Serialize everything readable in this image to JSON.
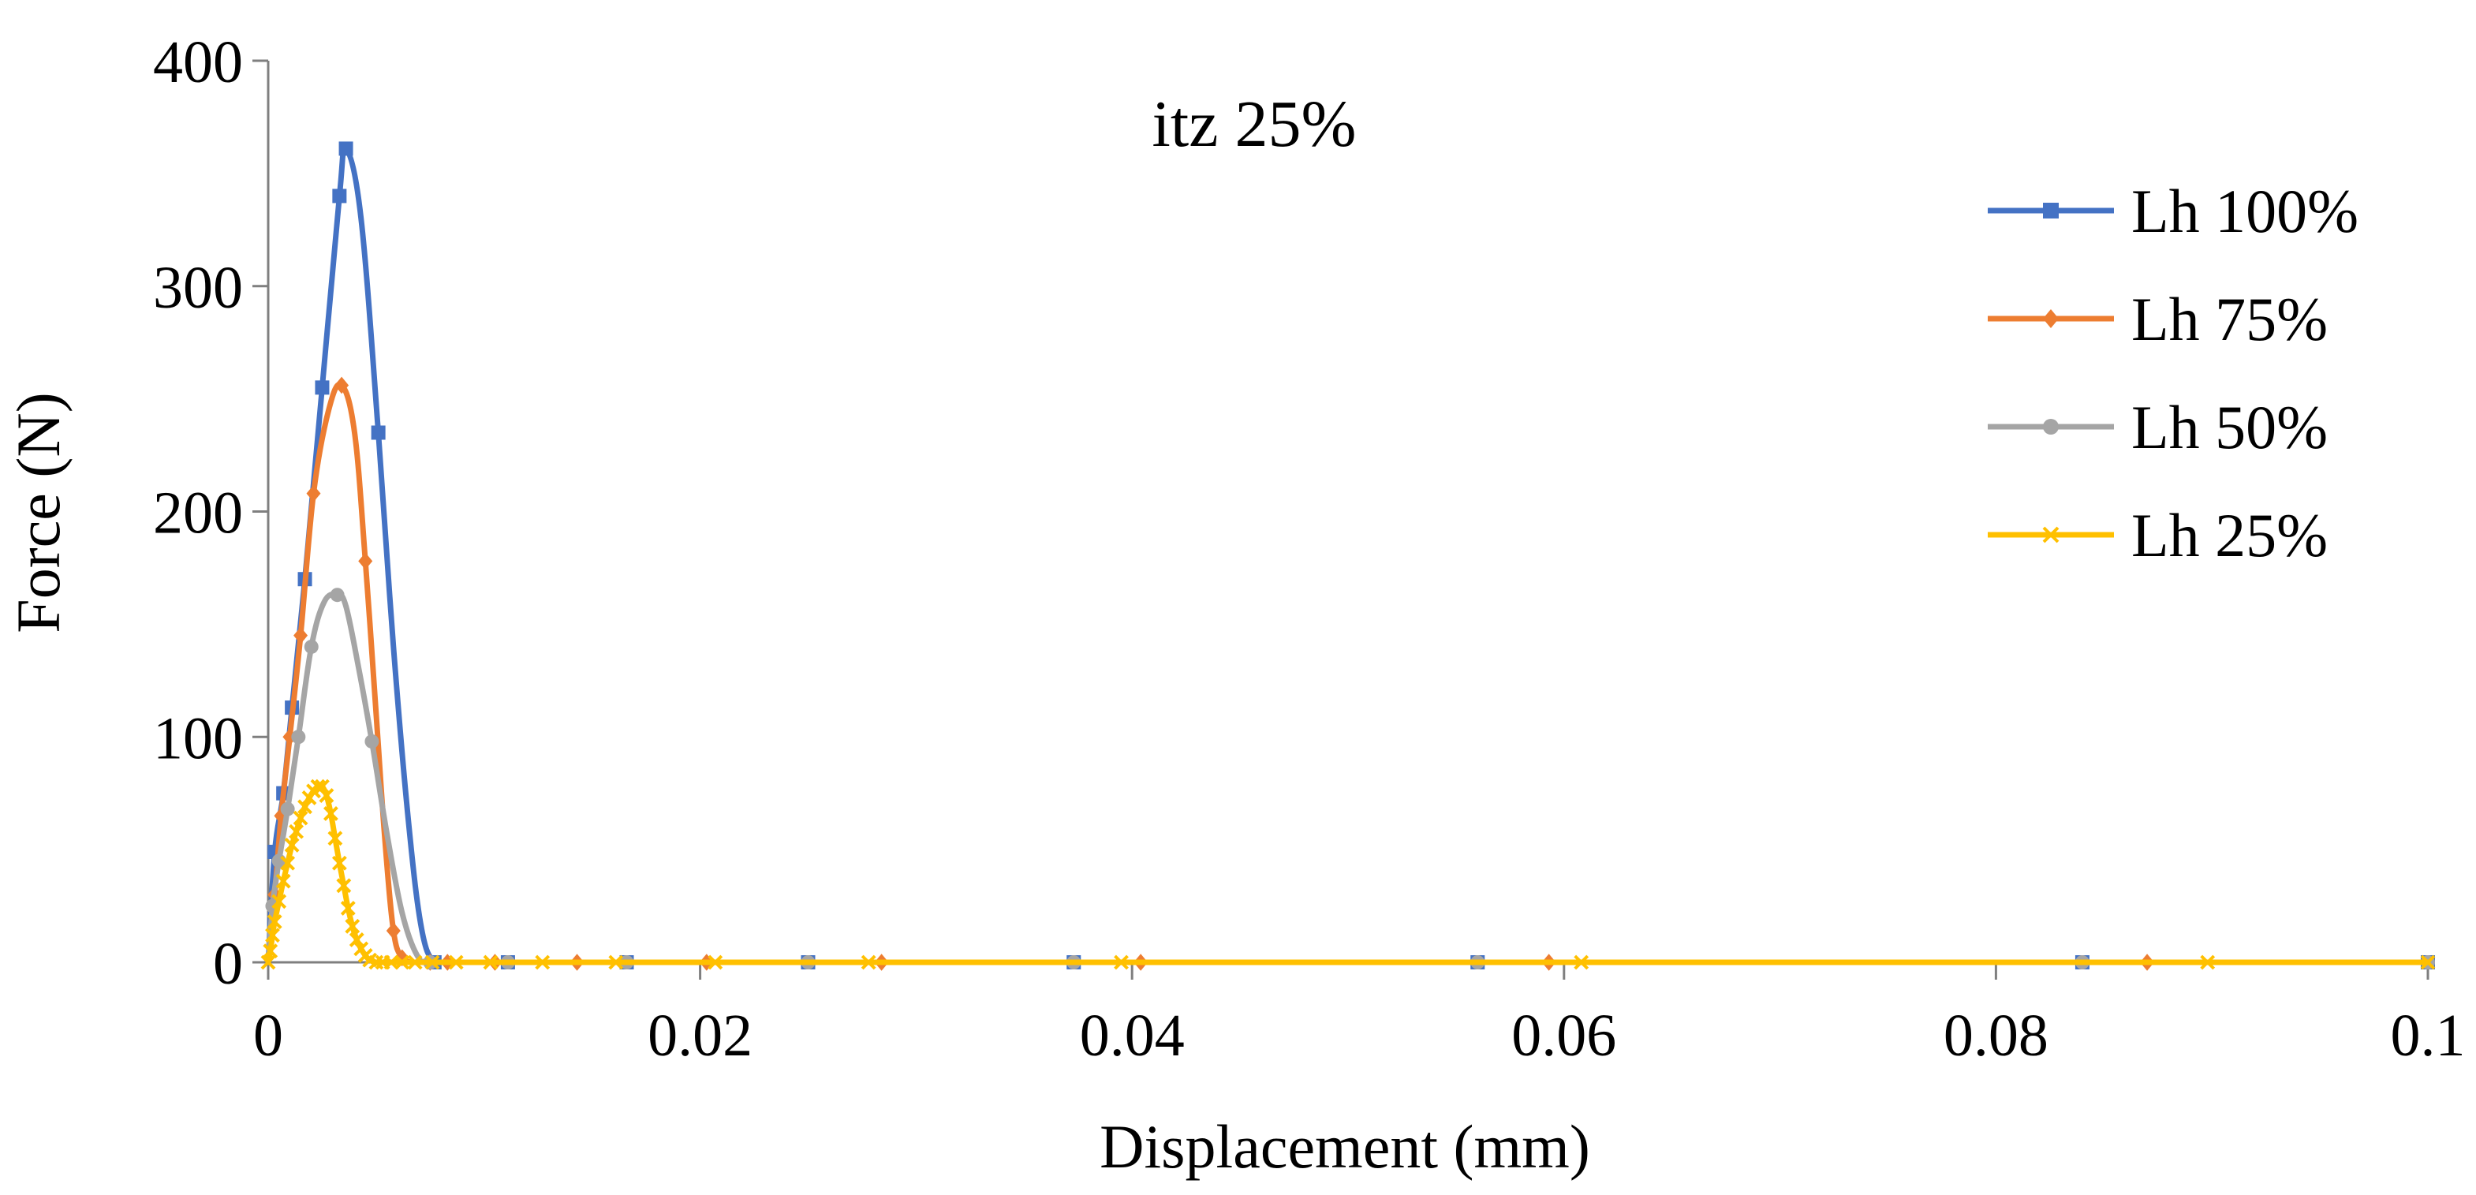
{
  "chart_data": {
    "type": "line",
    "title": "itz 25%",
    "xlabel": "Displacement (mm)",
    "ylabel": "Force (N)",
    "xlim": [
      0,
      0.1
    ],
    "ylim": [
      0,
      400
    ],
    "x_ticks": [
      0,
      0.02,
      0.04,
      0.06,
      0.08,
      0.1
    ],
    "x_tick_labels": [
      "0",
      "0.02",
      "0.04",
      "0.06",
      "0.08",
      "0.1"
    ],
    "y_ticks": [
      0,
      100,
      200,
      300,
      400
    ],
    "y_tick_labels": [
      "0",
      "100",
      "200",
      "300",
      "400"
    ],
    "grid": false,
    "legend_position": "top-right",
    "series": [
      {
        "name": "Lh 100%",
        "color": "#4472C4",
        "marker": "square",
        "x": [
          0,
          0.0003,
          0.0007,
          0.0011,
          0.0017,
          0.0025,
          0.0033,
          0.0036,
          0.0043,
          0.0051,
          0.0058,
          0.0065,
          0.0071,
          0.0077,
          0.0085,
          0.0111,
          0.0166,
          0.025,
          0.0373,
          0.056,
          0.084,
          0.1
        ],
        "y": [
          0,
          49,
          75,
          113,
          170,
          255,
          340,
          361,
          330,
          235,
          140,
          62,
          15,
          0,
          0,
          0,
          0,
          0,
          0,
          0,
          0,
          0
        ],
        "marker_indices": [
          1,
          2,
          3,
          4,
          5,
          6,
          7,
          9,
          13,
          15,
          16,
          17,
          18,
          19,
          20,
          21
        ]
      },
      {
        "name": "Lh 75%",
        "color": "#ED7D31",
        "marker": "diamond",
        "x": [
          0,
          0.0003,
          0.0006,
          0.001,
          0.0015,
          0.0021,
          0.0028,
          0.0034,
          0.004,
          0.0045,
          0.005,
          0.0054,
          0.0058,
          0.0062,
          0.0067,
          0.0075,
          0.0083,
          0.0105,
          0.0143,
          0.0203,
          0.0284,
          0.0404,
          0.0593,
          0.087,
          0.1
        ],
        "y": [
          0,
          30,
          65,
          100,
          145,
          208,
          245,
          256,
          235,
          178,
          110,
          55,
          14,
          2,
          0,
          0,
          0,
          0,
          0,
          0,
          0,
          0,
          0,
          0,
          0
        ],
        "marker_indices": [
          1,
          2,
          3,
          4,
          5,
          7,
          9,
          12,
          13,
          15,
          16,
          17,
          18,
          19,
          20,
          21,
          22,
          23
        ]
      },
      {
        "name": "Lh 50%",
        "color": "#A5A5A5",
        "marker": "circle",
        "x": [
          0,
          0.0002,
          0.0005,
          0.0009,
          0.0014,
          0.002,
          0.0026,
          0.0032,
          0.0036,
          0.0042,
          0.0048,
          0.0055,
          0.0062,
          0.0069,
          0.0075,
          0.0111,
          0.0166,
          0.025,
          0.0373,
          0.056,
          0.084,
          0.1
        ],
        "y": [
          0,
          25,
          45,
          68,
          100,
          140,
          160,
          163,
          158,
          130,
          98,
          57,
          22,
          3,
          0,
          0,
          0,
          0,
          0,
          0,
          0,
          0
        ],
        "marker_indices": [
          1,
          2,
          3,
          4,
          5,
          7,
          10,
          14,
          15,
          16,
          17,
          18,
          19,
          20,
          21
        ]
      },
      {
        "name": "Lh 25%",
        "color": "#FFC000",
        "marker": "x",
        "x": [
          0,
          0.0001,
          0.0002,
          0.0003,
          0.0005,
          0.0007,
          0.0009,
          0.0011,
          0.0013,
          0.0015,
          0.0017,
          0.0019,
          0.0021,
          0.0023,
          0.0025,
          0.0027,
          0.0029,
          0.0031,
          0.0033,
          0.0035,
          0.0037,
          0.0039,
          0.0041,
          0.0043,
          0.0045,
          0.0047,
          0.005,
          0.0053,
          0.0057,
          0.0062,
          0.0068,
          0.0076,
          0.0087,
          0.0103,
          0.0127,
          0.0161,
          0.0207,
          0.0278,
          0.0395,
          0.0608,
          0.0898,
          0.1
        ],
        "y": [
          0,
          5,
          12,
          18,
          27,
          36,
          44,
          52,
          58,
          64,
          69,
          73,
          76,
          78,
          78,
          74,
          66,
          55,
          44,
          34,
          24,
          16,
          10,
          6,
          3,
          1,
          0,
          0,
          0,
          0,
          0,
          0,
          0,
          0,
          0,
          0,
          0,
          0,
          0,
          0,
          0,
          0
        ],
        "marker_indices": "all"
      }
    ]
  }
}
